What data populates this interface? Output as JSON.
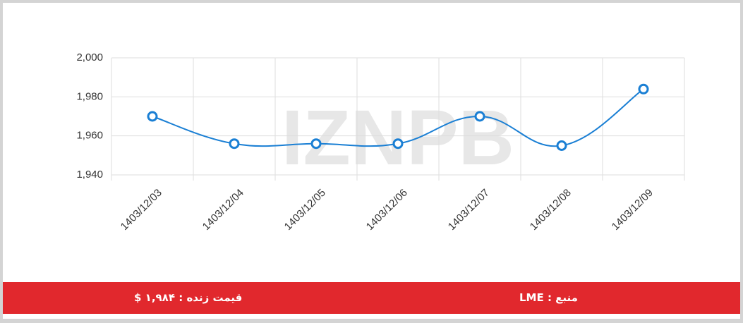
{
  "chart_data": {
    "type": "line",
    "watermark": "IZNPB",
    "categories": [
      "1403/12/03",
      "1403/12/04",
      "1403/12/05",
      "1403/12/06",
      "1403/12/07",
      "1403/12/08",
      "1403/12/09"
    ],
    "series": [
      {
        "color": "#1a7fd4",
        "values": [
          1970,
          1956,
          1956,
          1956,
          1970,
          1955,
          1984
        ]
      }
    ],
    "ylim": [
      1940,
      2000
    ],
    "yticks": [
      {
        "value": 1940,
        "label": "1,940"
      },
      {
        "value": 1960,
        "label": "1,960"
      },
      {
        "value": 1980,
        "label": "1,980"
      },
      {
        "value": 2000,
        "label": "2,000"
      }
    ],
    "grid": true
  },
  "footer": {
    "live_price": "قیمت زنده : ۱,۹۸۴ $",
    "source": "منبع : LME"
  }
}
